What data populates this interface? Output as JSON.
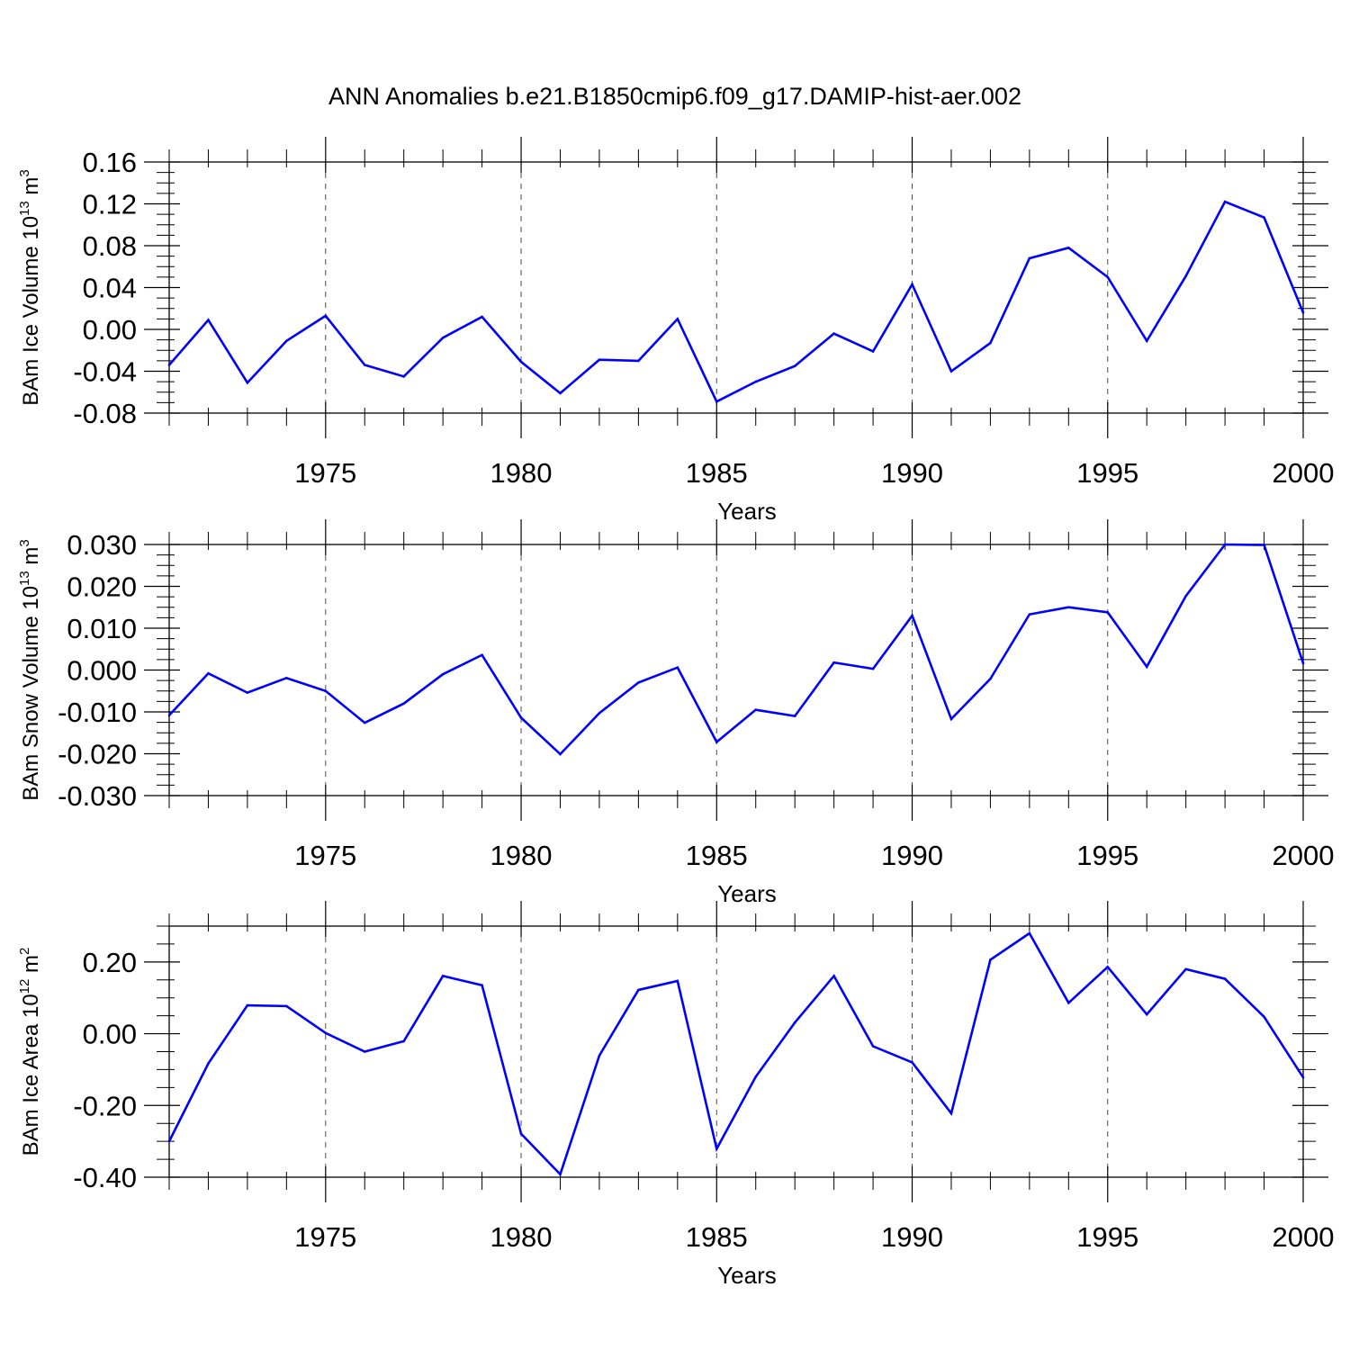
{
  "figure_title": "ANN Anomalies b.e21.B1850cmip6.f09_g17.DAMIP-hist-aer.002",
  "colors": {
    "line": "#0000ff",
    "axes": "#000000",
    "grid": "#000000"
  },
  "chart_data": [
    {
      "type": "line",
      "ylabel_main": "BAm Ice Volume 10",
      "ylabel_exp": "13",
      "ylabel_unit": " m",
      "ylabel_unit_exp": "3",
      "xlabel": "Years",
      "xlim": [
        1971,
        2000
      ],
      "ylim": [
        -0.08,
        0.16
      ],
      "yticks": [
        -0.08,
        -0.04,
        0.0,
        0.04,
        0.08,
        0.12,
        0.16
      ],
      "ytick_labels": [
        "-0.08",
        "-0.04",
        "0.00",
        "0.04",
        "0.08",
        "0.12",
        "0.16"
      ],
      "yminor_step": 0.01,
      "xticks": [
        1975,
        1980,
        1985,
        1990,
        1995,
        2000
      ],
      "xtick_labels": [
        "1975",
        "1980",
        "1985",
        "1990",
        "1995",
        "2000"
      ],
      "grid_x_dashed": [
        1975,
        1980,
        1985,
        1990,
        1995
      ],
      "x": [
        1971,
        1972,
        1973,
        1974,
        1975,
        1976,
        1977,
        1978,
        1979,
        1980,
        1981,
        1982,
        1983,
        1984,
        1985,
        1986,
        1987,
        1988,
        1989,
        1990,
        1991,
        1992,
        1993,
        1994,
        1995,
        1996,
        1997,
        1998,
        1999,
        2000
      ],
      "values": [
        -0.034,
        0.009,
        -0.051,
        -0.011,
        0.013,
        -0.034,
        -0.045,
        -0.008,
        0.012,
        -0.031,
        -0.061,
        -0.029,
        -0.03,
        0.01,
        -0.069,
        -0.05,
        -0.035,
        -0.004,
        -0.021,
        0.043,
        -0.04,
        -0.013,
        0.068,
        0.078,
        0.05,
        -0.011,
        0.051,
        0.122,
        0.107,
        0.016
      ]
    },
    {
      "type": "line",
      "ylabel_main": "BAm Snow Volume 10",
      "ylabel_exp": "13",
      "ylabel_unit": " m",
      "ylabel_unit_exp": "3",
      "xlabel": "Years",
      "xlim": [
        1971,
        2000
      ],
      "ylim": [
        -0.03,
        0.03
      ],
      "yticks": [
        -0.03,
        -0.02,
        -0.01,
        0.0,
        0.01,
        0.02,
        0.03
      ],
      "ytick_labels": [
        "-0.030",
        "-0.020",
        "-0.010",
        "0.000",
        "0.010",
        "0.020",
        "0.030"
      ],
      "yminor_step": 0.0025,
      "xticks": [
        1975,
        1980,
        1985,
        1990,
        1995,
        2000
      ],
      "xtick_labels": [
        "1975",
        "1980",
        "1985",
        "1990",
        "1995",
        "2000"
      ],
      "grid_x_dashed": [
        1975,
        1980,
        1985,
        1990,
        1995
      ],
      "x": [
        1971,
        1972,
        1973,
        1974,
        1975,
        1976,
        1977,
        1978,
        1979,
        1980,
        1981,
        1982,
        1983,
        1984,
        1985,
        1986,
        1987,
        1988,
        1989,
        1990,
        1991,
        1992,
        1993,
        1994,
        1995,
        1996,
        1997,
        1998,
        1999,
        2000
      ],
      "values": [
        -0.0108,
        -0.0008,
        -0.0054,
        -0.0019,
        -0.005,
        -0.0126,
        -0.008,
        -0.001,
        0.0036,
        -0.0114,
        -0.0201,
        -0.0103,
        -0.003,
        0.0006,
        -0.0172,
        -0.0095,
        -0.011,
        0.0018,
        0.0003,
        0.013,
        -0.0117,
        -0.0021,
        0.0133,
        0.015,
        0.0138,
        0.0008,
        0.0177,
        0.03,
        0.0299,
        0.0016
      ]
    },
    {
      "type": "line",
      "ylabel_main": "BAm Ice Area 10",
      "ylabel_exp": "12",
      "ylabel_unit": " m",
      "ylabel_unit_exp": "2",
      "xlabel": "Years",
      "xlim": [
        1971,
        2000
      ],
      "ylim": [
        -0.4,
        0.3
      ],
      "yticks": [
        -0.4,
        -0.2,
        0.0,
        0.2
      ],
      "ytick_labels": [
        "-0.40",
        "-0.20",
        "0.00",
        "0.20"
      ],
      "yminor_step": 0.05,
      "xticks": [
        1975,
        1980,
        1985,
        1990,
        1995,
        2000
      ],
      "xtick_labels": [
        "1975",
        "1980",
        "1985",
        "1990",
        "1995",
        "2000"
      ],
      "grid_x_dashed": [
        1975,
        1980,
        1985,
        1990,
        1995
      ],
      "x": [
        1971,
        1972,
        1973,
        1974,
        1975,
        1976,
        1977,
        1978,
        1979,
        1980,
        1981,
        1982,
        1983,
        1984,
        1985,
        1986,
        1987,
        1988,
        1989,
        1990,
        1991,
        1992,
        1993,
        1994,
        1995,
        1996,
        1997,
        1998,
        1999,
        2000
      ],
      "values": [
        -0.3,
        -0.083,
        0.079,
        0.077,
        0.002,
        -0.05,
        -0.021,
        0.161,
        0.135,
        -0.279,
        -0.392,
        -0.061,
        0.122,
        0.147,
        -0.321,
        -0.12,
        0.031,
        0.161,
        -0.035,
        -0.08,
        -0.222,
        0.206,
        0.28,
        0.086,
        0.186,
        0.054,
        0.18,
        0.153,
        0.047,
        -0.122
      ]
    }
  ]
}
